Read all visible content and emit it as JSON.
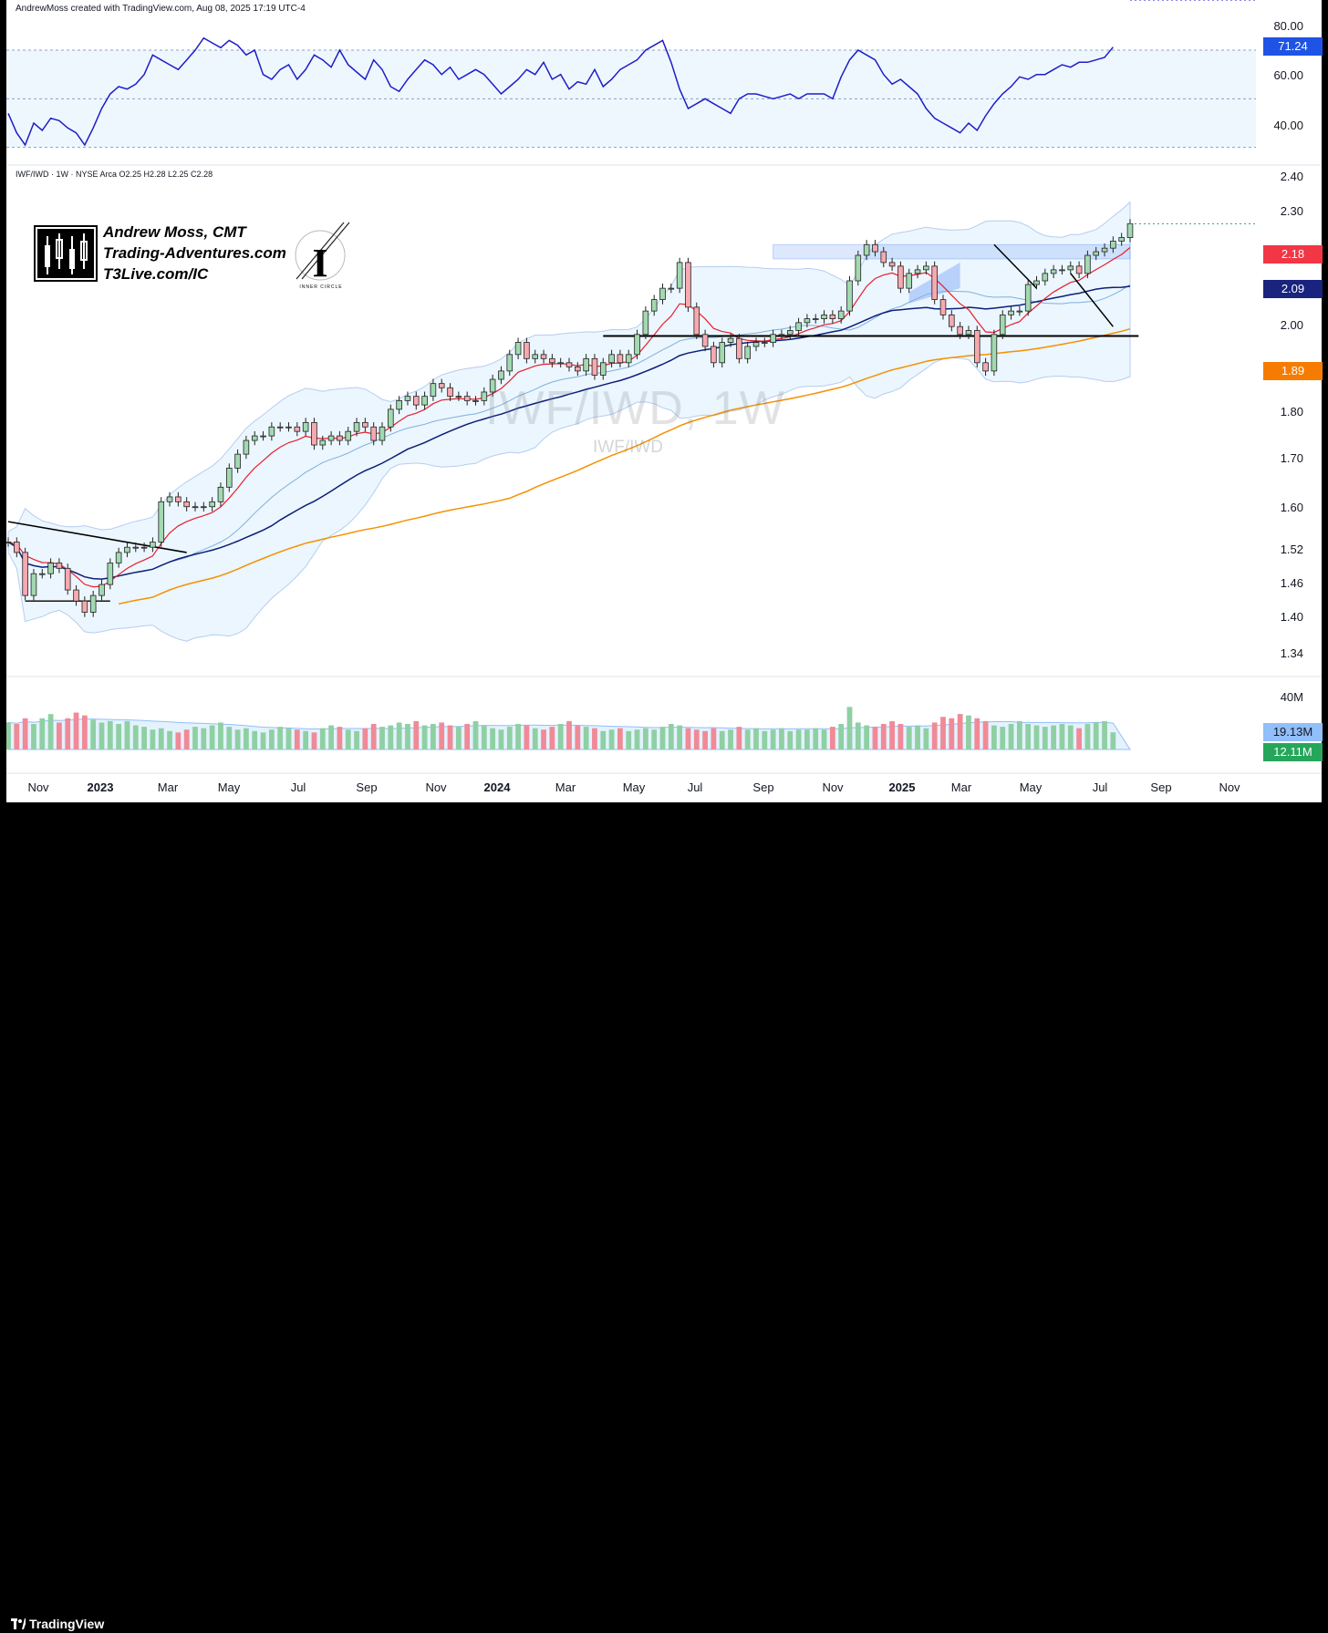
{
  "header": {
    "credit": "AndrewMoss created with TradingView.com, Aug 08, 2025 17:19 UTC-4"
  },
  "symbol": {
    "legend": "IWF/IWD · 1W · NYSE Arca  O2.25  H2.28  L2.25  C2.28"
  },
  "watermark": {
    "big": "IWF/IWD, 1W",
    "small": "IWF/IWD"
  },
  "brand": {
    "name": "Andrew Moss, CMT",
    "site": "Trading-Adventures.com",
    "link": "T3Live.com/IC",
    "logo_text": "INNER CIRCLE"
  },
  "rsi_axis": [
    "80.00",
    "60.00",
    "40.00"
  ],
  "price_axis": [
    "2.40",
    "2.30",
    "2.00",
    "1.80",
    "1.70",
    "1.60",
    "1.52",
    "1.46",
    "1.40",
    "1.34"
  ],
  "volume_axis": [
    "40M"
  ],
  "tags": {
    "rsi": "71.24",
    "ma_red": "2.18",
    "ma_navy": "2.09",
    "ma_orange": "1.89",
    "vol_ma": "19.13M",
    "vol": "12.11M"
  },
  "footer": {
    "brand": "TradingView"
  },
  "colors": {
    "up": "#26a65b",
    "down": "#f23645",
    "rsi": "#1e1ec8",
    "ema_red": "#e91e2c",
    "ma_navy": "#0d1e78",
    "ma_orange": "#f59000",
    "bb": "#8ab4e8"
  },
  "chart_data": {
    "type": "candlestick",
    "symbol": "IWF/IWD",
    "interval": "1W",
    "x_ticks": [
      {
        "label": "Nov",
        "bold": false
      },
      {
        "label": "2023",
        "bold": true
      },
      {
        "label": "Mar",
        "bold": false
      },
      {
        "label": "May",
        "bold": false
      },
      {
        "label": "Jul",
        "bold": false
      },
      {
        "label": "Sep",
        "bold": false
      },
      {
        "label": "Nov",
        "bold": false
      },
      {
        "label": "2024",
        "bold": true
      },
      {
        "label": "Mar",
        "bold": false
      },
      {
        "label": "May",
        "bold": false
      },
      {
        "label": "Jul",
        "bold": false
      },
      {
        "label": "Sep",
        "bold": false
      },
      {
        "label": "Nov",
        "bold": false
      },
      {
        "label": "2025",
        "bold": true
      },
      {
        "label": "Mar",
        "bold": false
      },
      {
        "label": "May",
        "bold": false
      },
      {
        "label": "Jul",
        "bold": false
      },
      {
        "label": "Sep",
        "bold": false
      },
      {
        "label": "Nov",
        "bold": false
      }
    ],
    "price_scale": "log",
    "ylim": [
      1.32,
      2.42
    ],
    "closes": [
      1.52,
      1.5,
      1.42,
      1.46,
      1.46,
      1.48,
      1.47,
      1.43,
      1.41,
      1.39,
      1.42,
      1.44,
      1.48,
      1.5,
      1.51,
      1.51,
      1.51,
      1.52,
      1.6,
      1.61,
      1.6,
      1.59,
      1.59,
      1.59,
      1.6,
      1.63,
      1.67,
      1.7,
      1.73,
      1.74,
      1.74,
      1.76,
      1.76,
      1.76,
      1.75,
      1.77,
      1.72,
      1.73,
      1.74,
      1.73,
      1.75,
      1.77,
      1.76,
      1.73,
      1.76,
      1.8,
      1.82,
      1.83,
      1.81,
      1.83,
      1.86,
      1.85,
      1.83,
      1.83,
      1.82,
      1.82,
      1.84,
      1.87,
      1.89,
      1.93,
      1.96,
      1.92,
      1.93,
      1.92,
      1.91,
      1.91,
      1.9,
      1.89,
      1.92,
      1.88,
      1.91,
      1.93,
      1.91,
      1.93,
      1.98,
      2.04,
      2.07,
      2.1,
      2.1,
      2.17,
      2.05,
      1.98,
      1.95,
      1.91,
      1.96,
      1.97,
      1.92,
      1.95,
      1.96,
      1.96,
      1.98,
      1.98,
      1.99,
      2.01,
      2.02,
      2.02,
      2.03,
      2.02,
      2.04,
      2.12,
      2.19,
      2.22,
      2.2,
      2.17,
      2.16,
      2.1,
      2.14,
      2.15,
      2.16,
      2.07,
      2.03,
      2.0,
      1.98,
      1.99,
      1.91,
      1.89,
      1.98,
      2.03,
      2.04,
      2.04,
      2.11,
      2.12,
      2.14,
      2.15,
      2.15,
      2.16,
      2.14,
      2.19,
      2.2,
      2.21,
      2.23,
      2.24,
      2.28
    ],
    "support_line": 1.976,
    "resistance_zone": [
      2.18,
      2.22
    ],
    "rsi": {
      "ylim": [
        25,
        85
      ],
      "levels": [
        70,
        50,
        30
      ],
      "values": [
        44,
        36,
        31,
        40,
        37,
        42,
        41,
        38,
        36,
        31,
        38,
        46,
        52,
        55,
        54,
        56,
        60,
        68,
        66,
        64,
        62,
        66,
        70,
        75,
        73,
        71,
        74,
        72,
        68,
        70,
        60,
        58,
        62,
        64,
        58,
        62,
        68,
        66,
        63,
        70,
        64,
        61,
        58,
        66,
        62,
        55,
        53,
        58,
        62,
        66,
        64,
        60,
        63,
        58,
        60,
        62,
        60,
        56,
        52,
        55,
        58,
        62,
        60,
        65,
        58,
        60,
        54,
        57,
        56,
        62,
        55,
        58,
        62,
        64,
        66,
        70,
        72,
        74,
        65,
        54,
        46,
        48,
        50,
        48,
        46,
        44,
        50,
        52,
        52,
        51,
        50,
        51,
        52,
        50,
        52,
        52,
        52,
        50,
        59,
        66,
        70,
        68,
        66,
        60,
        56,
        58,
        55,
        52,
        46,
        42,
        40,
        38,
        36,
        40,
        37,
        43,
        48,
        52,
        55,
        59,
        58,
        60,
        60,
        62,
        64,
        63,
        65,
        65,
        66,
        67,
        71.24
      ]
    },
    "volume": {
      "ylim": [
        0,
        45
      ],
      "unit": "M",
      "values": [
        19,
        18,
        22,
        18,
        22,
        25,
        19,
        22,
        26,
        24,
        21,
        19,
        20,
        18,
        20,
        17,
        16,
        14,
        15,
        13,
        12,
        14,
        16,
        15,
        17,
        19,
        16,
        14,
        15,
        13,
        12,
        14,
        16,
        15,
        14,
        13,
        12,
        15,
        17,
        16,
        14,
        13,
        15,
        18,
        16,
        17,
        19,
        18,
        20,
        17,
        18,
        19,
        17,
        16,
        18,
        20,
        17,
        15,
        14,
        16,
        18,
        17,
        15,
        14,
        16,
        18,
        20,
        17,
        16,
        15,
        13,
        14,
        15,
        13,
        14,
        15,
        14,
        16,
        18,
        17,
        15,
        14,
        13,
        15,
        13,
        14,
        16,
        14,
        15,
        13,
        14,
        15,
        13,
        14,
        14,
        15,
        14,
        16,
        18,
        30,
        19,
        17,
        16,
        18,
        20,
        18,
        16,
        17,
        15,
        19,
        23,
        22,
        25,
        24,
        22,
        20,
        17,
        16,
        18,
        20,
        18,
        17,
        16,
        17,
        18,
        17,
        15,
        18,
        19,
        20,
        12.11
      ],
      "ma": 19.13
    }
  }
}
